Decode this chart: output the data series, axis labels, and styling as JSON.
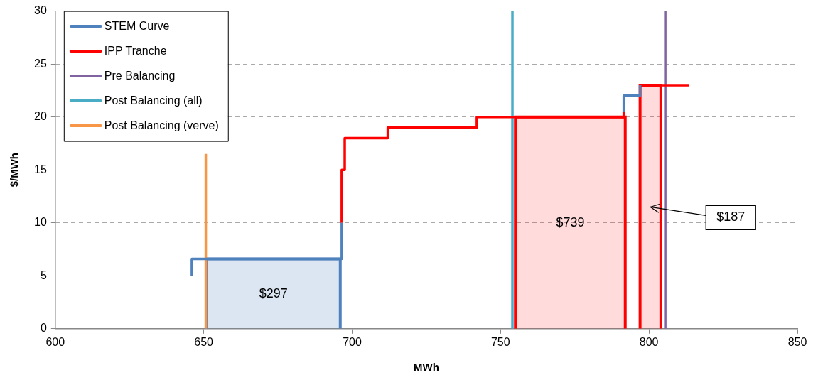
{
  "chart_data": {
    "type": "line",
    "xlabel": "MWh",
    "ylabel": "$/MWh",
    "xlim": [
      600,
      850
    ],
    "xticks": [
      600,
      650,
      700,
      750,
      800,
      850
    ],
    "ylim": [
      0,
      30
    ],
    "yticks": [
      0,
      5,
      10,
      15,
      20,
      25,
      30
    ],
    "grid": "y",
    "legend": "top left",
    "marker": "none",
    "series": [
      {
        "name": "STEM Curve",
        "color": "#4f81bd",
        "x": [
          646,
          646,
          696.5,
          696.5,
          744,
          791.5,
          791.5,
          797,
          797
        ],
        "values": [
          5,
          6.6,
          6.6,
          10,
          null,
          20.5,
          22,
          22,
          23
        ]
      },
      {
        "name": "IPP Tranche",
        "color": "#ff0000",
        "x": [
          696.5,
          696.5,
          697.5,
          697.5,
          712,
          712,
          742,
          742,
          791.5,
          791.5,
          794,
          797,
          813.5
        ],
        "values": [
          10,
          15,
          15,
          18,
          18,
          19,
          19,
          20,
          20,
          20.5,
          null,
          23,
          23
        ]
      },
      {
        "name": "Pre Balancing",
        "color": "#8064a2",
        "x": [
          805.5,
          805.5
        ],
        "values": [
          0,
          30
        ]
      },
      {
        "name": "Post Balancing (all)",
        "color": "#4bacc6",
        "x": [
          754,
          754
        ],
        "values": [
          0,
          30
        ]
      },
      {
        "name": "Post Balancing (verve)",
        "color": "#f79646",
        "x": [
          650.7,
          650.7
        ],
        "values": [
          0,
          16.5
        ]
      },
      {
        "type": "area",
        "color": "#4f81bd",
        "x": [
          651,
          651,
          696,
          696
        ],
        "values": [
          0,
          6.6,
          6.6,
          0
        ]
      },
      {
        "type": "area",
        "color": "#ff0000",
        "x": [
          755,
          755,
          792,
          792
        ],
        "values": [
          0,
          20,
          20,
          0
        ]
      },
      {
        "type": "area",
        "color": "#ff0000",
        "x": [
          797,
          797,
          804,
          804
        ],
        "values": [
          0,
          23,
          23,
          0
        ]
      }
    ],
    "annotations": [
      "$297",
      "$739",
      "$187"
    ]
  }
}
